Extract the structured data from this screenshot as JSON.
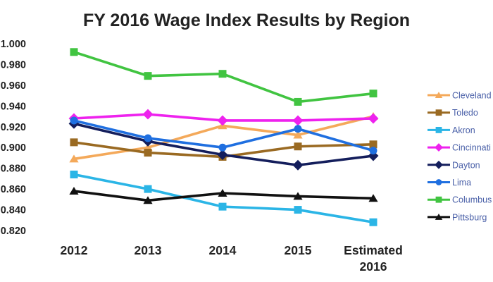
{
  "chart_data": {
    "type": "line",
    "title": "FY 2016 Wage Index Results by Region",
    "xlabel": "",
    "ylabel": "",
    "categories": [
      "2012",
      "2013",
      "2014",
      "2015",
      "Estimated 2016"
    ],
    "ylim": [
      0.82,
      1.0
    ],
    "yticks": [
      "0.820",
      "0.840",
      "0.860",
      "0.880",
      "0.900",
      "0.920",
      "0.940",
      "0.960",
      "0.980",
      "1.000"
    ],
    "grid": false,
    "legend_position": "right",
    "series": [
      {
        "name": "Cleveland",
        "color": "#f4a95a",
        "marker": "triangle",
        "values": [
          0.889,
          0.9,
          0.921,
          0.912,
          0.93
        ]
      },
      {
        "name": "Toledo",
        "color": "#9a6a22",
        "marker": "square",
        "values": [
          0.905,
          0.895,
          0.891,
          0.901,
          0.903
        ]
      },
      {
        "name": "Akron",
        "color": "#2bb5e6",
        "marker": "square",
        "values": [
          0.874,
          0.86,
          0.843,
          0.84,
          0.828
        ]
      },
      {
        "name": "Cincinnati",
        "color": "#ee22ee",
        "marker": "diamond",
        "values": [
          0.928,
          0.932,
          0.926,
          0.926,
          0.928
        ]
      },
      {
        "name": "Dayton",
        "color": "#141e5c",
        "marker": "diamond",
        "values": [
          0.923,
          0.906,
          0.893,
          0.883,
          0.892
        ]
      },
      {
        "name": "Lima",
        "color": "#1f6fe0",
        "marker": "circle",
        "values": [
          0.926,
          0.909,
          0.9,
          0.918,
          0.897
        ]
      },
      {
        "name": "Columbus",
        "color": "#41c441",
        "marker": "square",
        "values": [
          0.992,
          0.969,
          0.971,
          0.944,
          0.952
        ]
      },
      {
        "name": "Pittsburg",
        "color": "#111111",
        "marker": "triangle",
        "values": [
          0.858,
          0.849,
          0.856,
          0.853,
          0.851
        ]
      }
    ]
  }
}
